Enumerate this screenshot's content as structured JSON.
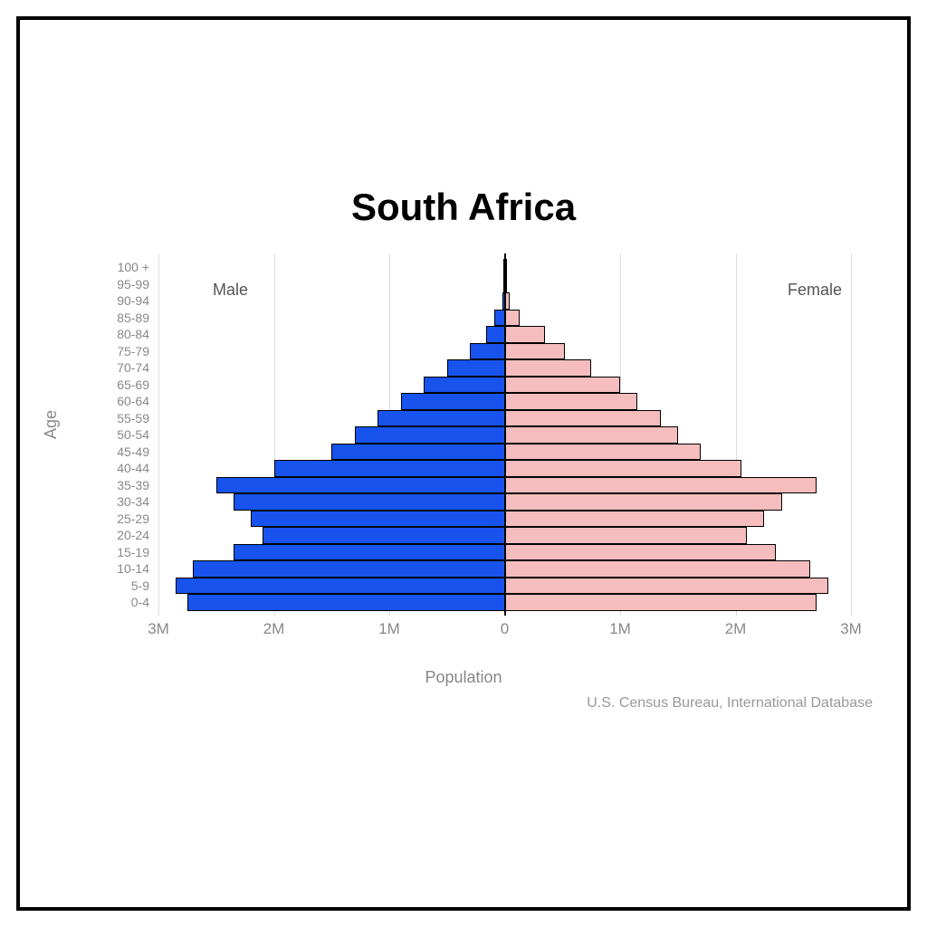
{
  "title": "South Africa",
  "yAxisLabel": "Age",
  "xAxisLabel": "Population",
  "sourceLabel": "U.S. Census Bureau, International Database",
  "maleLabel": "Male",
  "femaleLabel": "Female",
  "chart": {
    "type": "population-pyramid",
    "maleColor": "#1753ec",
    "femaleColor": "#f5bdbd",
    "barBorderColor": "#000000",
    "gridColor": "#dddddd",
    "centerAxisColor": "#000000",
    "backgroundColor": "#ffffff",
    "titleFontSize": 42,
    "axisLabelFontSize": 18,
    "tickLabelFontSize": 17,
    "ageLabelFontSize": 14,
    "barHeight": 18.5,
    "xMax": 3000000,
    "xTicks": [
      {
        "value": -3000000,
        "label": "3M"
      },
      {
        "value": -2000000,
        "label": "2M"
      },
      {
        "value": -1000000,
        "label": "1M"
      },
      {
        "value": 0,
        "label": "0"
      },
      {
        "value": 1000000,
        "label": "1M"
      },
      {
        "value": 2000000,
        "label": "2M"
      },
      {
        "value": 3000000,
        "label": "3M"
      }
    ],
    "ageGroups": [
      {
        "label": "100 +",
        "male": 8000,
        "female": 8000
      },
      {
        "label": "95-99",
        "male": 8000,
        "female": 15000
      },
      {
        "label": "90-94",
        "male": 20000,
        "female": 40000
      },
      {
        "label": "85-89",
        "male": 90000,
        "female": 130000
      },
      {
        "label": "80-84",
        "male": 160000,
        "female": 350000
      },
      {
        "label": "75-79",
        "male": 300000,
        "female": 520000
      },
      {
        "label": "70-74",
        "male": 500000,
        "female": 750000
      },
      {
        "label": "65-69",
        "male": 700000,
        "female": 1000000
      },
      {
        "label": "60-64",
        "male": 900000,
        "female": 1150000
      },
      {
        "label": "55-59",
        "male": 1100000,
        "female": 1350000
      },
      {
        "label": "50-54",
        "male": 1300000,
        "female": 1500000
      },
      {
        "label": "45-49",
        "male": 1500000,
        "female": 1700000
      },
      {
        "label": "40-44",
        "male": 2000000,
        "female": 2050000
      },
      {
        "label": "35-39",
        "male": 2500000,
        "female": 2700000
      },
      {
        "label": "30-34",
        "male": 2350000,
        "female": 2400000
      },
      {
        "label": "25-29",
        "male": 2200000,
        "female": 2250000
      },
      {
        "label": "20-24",
        "male": 2100000,
        "female": 2100000
      },
      {
        "label": "15-19",
        "male": 2350000,
        "female": 2350000
      },
      {
        "label": "10-14",
        "male": 2700000,
        "female": 2650000
      },
      {
        "label": "5-9",
        "male": 2850000,
        "female": 2800000
      },
      {
        "label": "0-4",
        "male": 2750000,
        "female": 2700000
      }
    ]
  }
}
